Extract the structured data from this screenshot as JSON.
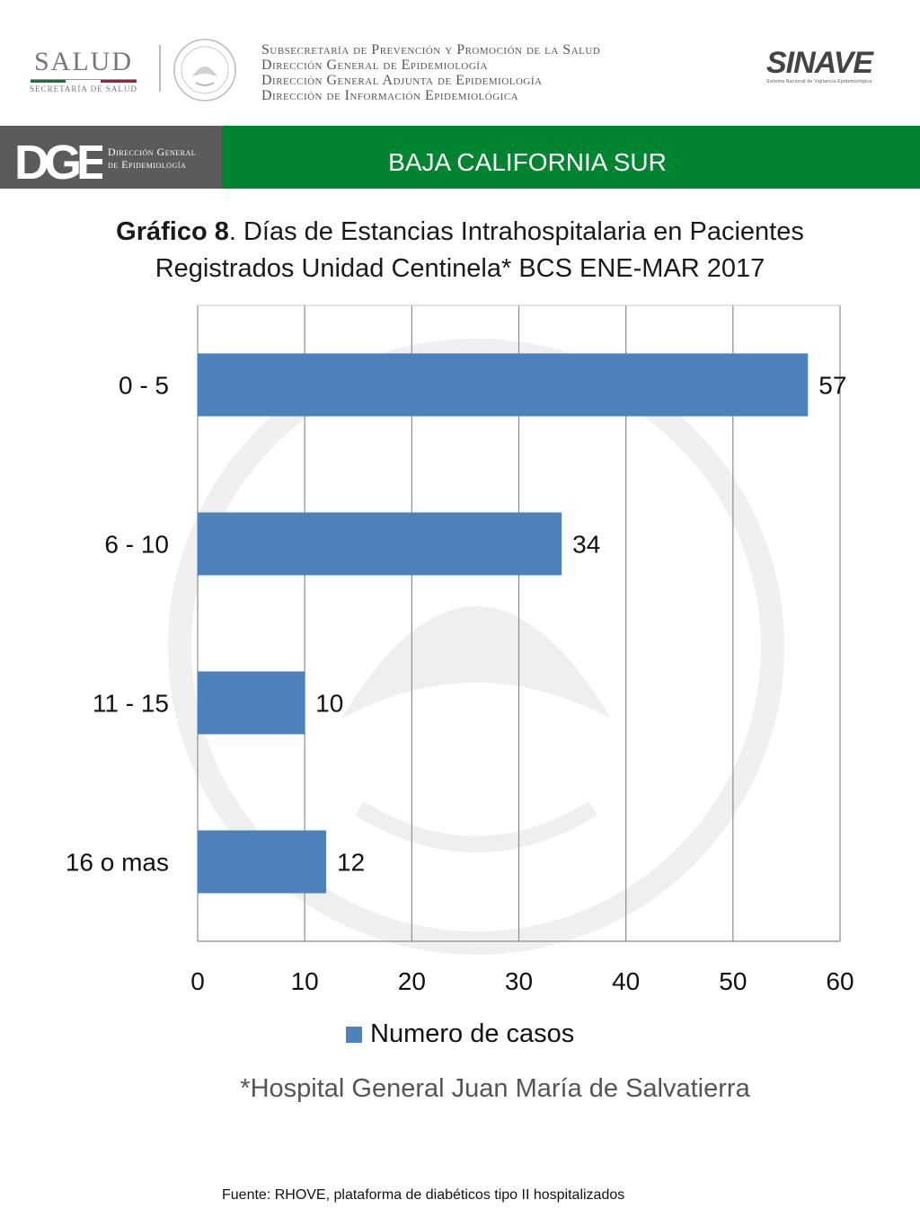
{
  "header": {
    "salud_logo": {
      "word": "SALUD",
      "sub": "SECRETARÍA DE SALUD"
    },
    "institution_lines": [
      "Subsecretaría de Prevención y Promoción de la Salud",
      "Dirección General de Epidemiología",
      "Dirección General Adjunta de Epidemiología",
      "Dirección de Información Epidemiológica"
    ],
    "sinave_logo": {
      "word": "SINAVE",
      "sub": "Sistema Nacional de Vigilancia Epidemiológica"
    },
    "dge_logo": {
      "mark": "DGE",
      "line1": "Dirección General",
      "line2": "de Epidemiología"
    },
    "region": "BAJA CALIFORNIA SUR"
  },
  "title": {
    "bold": "Gráfico 8",
    "rest": ". Días de Estancias Intrahospitalaria en Pacientes",
    "line2": "Registrados Unidad Centinela* BCS  ENE-MAR 2017"
  },
  "chart_data": {
    "type": "bar",
    "orientation": "horizontal",
    "categories": [
      "0 - 5",
      "6 - 10",
      "11 - 15",
      "16 o mas"
    ],
    "series": [
      {
        "name": "Numero de casos",
        "values": [
          57,
          34,
          10,
          12
        ],
        "color": "#4f81bd"
      }
    ],
    "xlim": [
      0,
      60
    ],
    "xticks": [
      0,
      10,
      20,
      30,
      40,
      50,
      60
    ],
    "grid": true,
    "legend": "bottom",
    "data_labels": true
  },
  "footnote": "*Hospital General Juan María de Salvatierra",
  "source": "Fuente: RHOVE, plataforma de diabéticos tipo II hospitalizados",
  "colors": {
    "green_band": "#00842f",
    "gray_band": "#5b5b5b",
    "bar": "#4f81bd",
    "grid": "#8c8c8c"
  }
}
